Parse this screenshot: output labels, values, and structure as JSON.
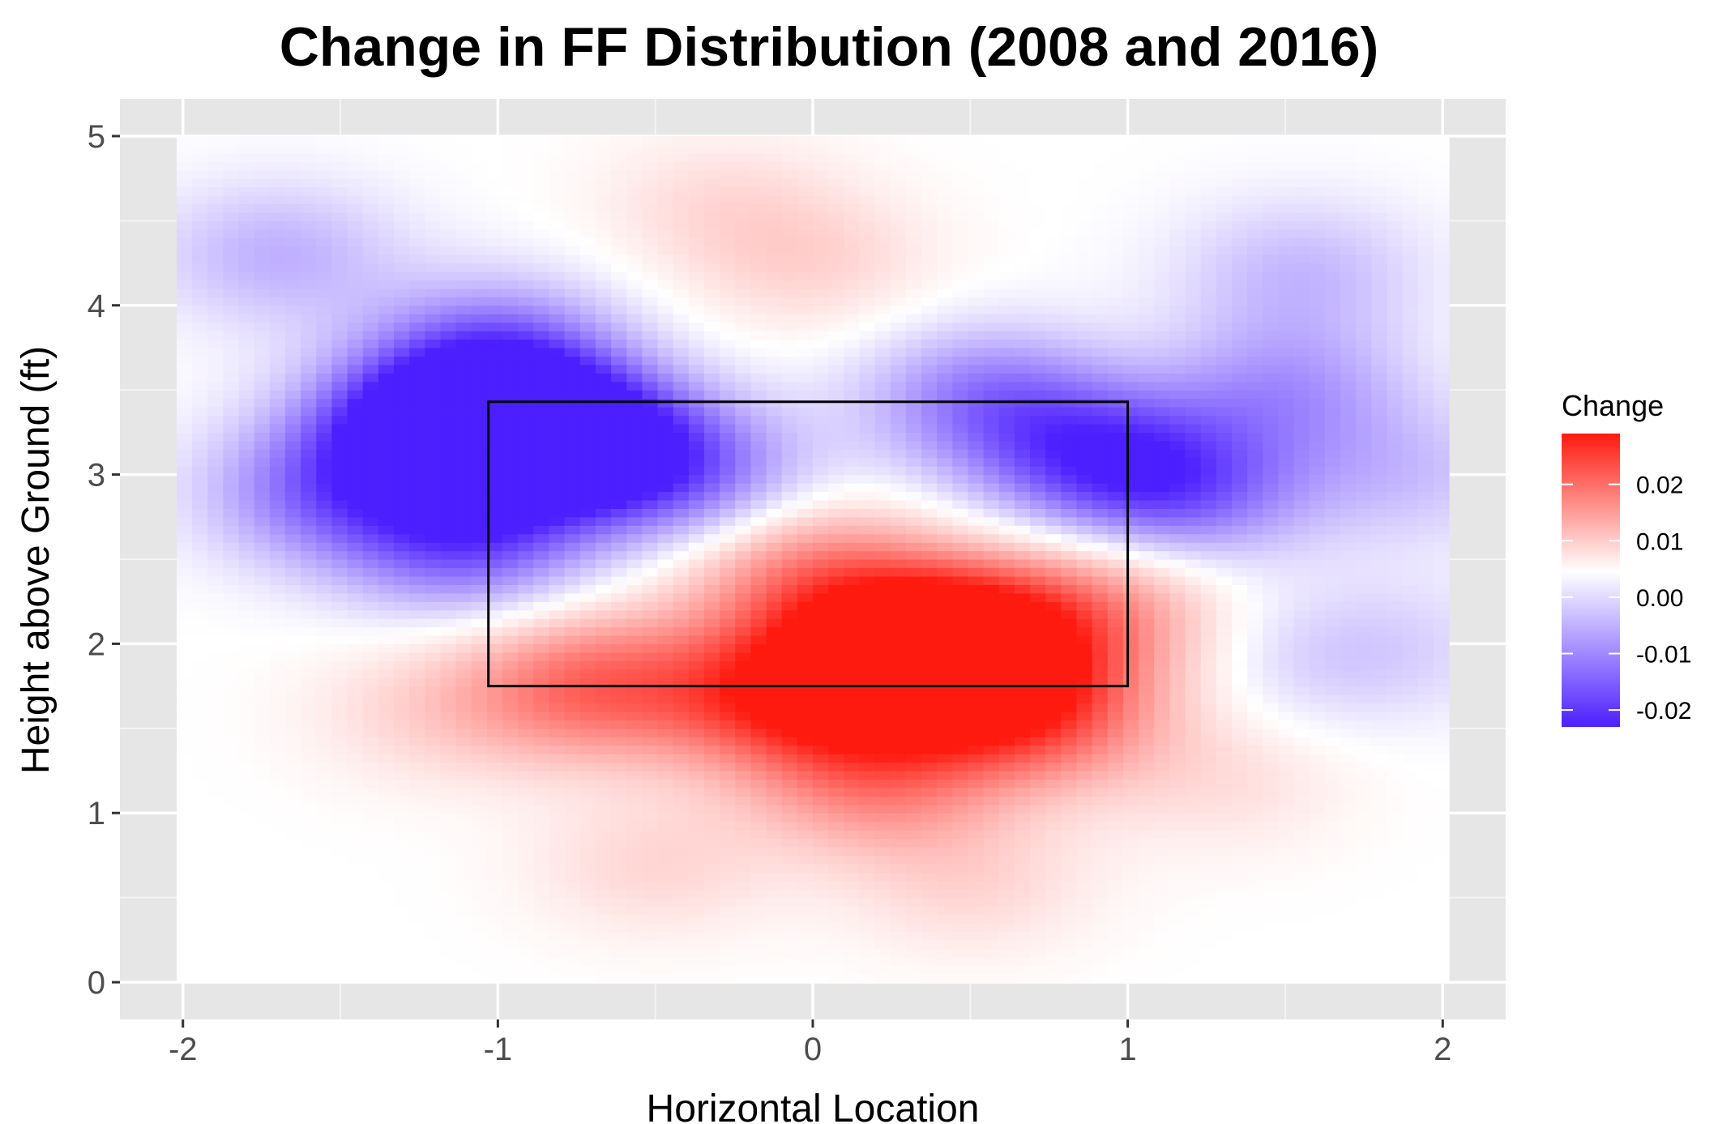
{
  "chart_data": {
    "type": "heatmap",
    "title": "Change in FF Distribution (2008 and 2016)",
    "xlabel": "Horizontal Location",
    "ylabel": "Height above Ground (ft)",
    "xlim": [
      -2.2,
      2.2
    ],
    "ylim": [
      -0.22,
      5.22
    ],
    "x_ticks": [
      -2,
      -1,
      0,
      1,
      2
    ],
    "y_ticks": [
      0,
      1,
      2,
      3,
      4,
      5
    ],
    "x_tick_labels": [
      "-2",
      "-1",
      "0",
      "1",
      "2"
    ],
    "y_tick_labels": [
      "0",
      "1",
      "2",
      "3",
      "4",
      "5"
    ],
    "grid": true,
    "data_extent": {
      "x": [
        -2.02,
        2.02
      ],
      "y": [
        0.0,
        5.0
      ]
    },
    "strike_zone": {
      "x": [
        -1.03,
        1.0
      ],
      "y": [
        1.75,
        3.43
      ]
    },
    "fill_range": [
      -0.023,
      0.029
    ],
    "hot_spots": [
      {
        "x": 0.3,
        "y": 1.85,
        "value": 0.028
      },
      {
        "x": 0.45,
        "y": 2.05,
        "value": 0.027
      },
      {
        "x": -0.1,
        "y": 1.7,
        "value": 0.022
      },
      {
        "x": 0.7,
        "y": 1.6,
        "value": 0.02
      },
      {
        "x": -0.7,
        "y": 1.75,
        "value": 0.018
      },
      {
        "x": 0.2,
        "y": 1.2,
        "value": 0.014
      },
      {
        "x": 0.0,
        "y": 2.4,
        "value": 0.015
      },
      {
        "x": 0.9,
        "y": 2.2,
        "value": 0.012
      },
      {
        "x": -1.2,
        "y": 1.6,
        "value": 0.005
      },
      {
        "x": 1.3,
        "y": 1.2,
        "value": 0.004
      },
      {
        "x": -0.5,
        "y": 0.7,
        "value": 0.005
      },
      {
        "x": 0.5,
        "y": 0.6,
        "value": 0.005
      },
      {
        "x": -0.3,
        "y": 4.6,
        "value": 0.004
      },
      {
        "x": 0.0,
        "y": 4.25,
        "value": 0.005
      },
      {
        "x": -1.0,
        "y": 3.25,
        "value": -0.022
      },
      {
        "x": -1.2,
        "y": 3.3,
        "value": -0.02
      },
      {
        "x": -0.75,
        "y": 3.2,
        "value": -0.021
      },
      {
        "x": -1.1,
        "y": 2.6,
        "value": -0.016
      },
      {
        "x": -1.55,
        "y": 2.9,
        "value": -0.013
      },
      {
        "x": -1.0,
        "y": 3.75,
        "value": -0.013
      },
      {
        "x": -0.4,
        "y": 3.0,
        "value": -0.013
      },
      {
        "x": 0.55,
        "y": 3.45,
        "value": -0.013
      },
      {
        "x": 0.9,
        "y": 3.1,
        "value": -0.016
      },
      {
        "x": 1.2,
        "y": 2.9,
        "value": -0.013
      },
      {
        "x": 1.5,
        "y": 3.5,
        "value": -0.01
      },
      {
        "x": 1.55,
        "y": 4.2,
        "value": -0.007
      },
      {
        "x": -1.7,
        "y": 4.3,
        "value": -0.008
      },
      {
        "x": 1.9,
        "y": 3.0,
        "value": -0.006
      },
      {
        "x": 1.9,
        "y": 2.0,
        "value": -0.003
      },
      {
        "x": 1.6,
        "y": 1.9,
        "value": -0.004
      }
    ],
    "legend": {
      "title": "Change",
      "position": "right",
      "ticks": [
        0.02,
        0.01,
        0.0,
        -0.01,
        -0.02
      ],
      "tick_labels": [
        "0.02",
        "0.01",
        "0.00",
        "-0.01",
        "-0.02"
      ],
      "colors": {
        "low": "#4b1fff",
        "mid": "#ffffff",
        "high": "#ff1a10"
      }
    }
  }
}
